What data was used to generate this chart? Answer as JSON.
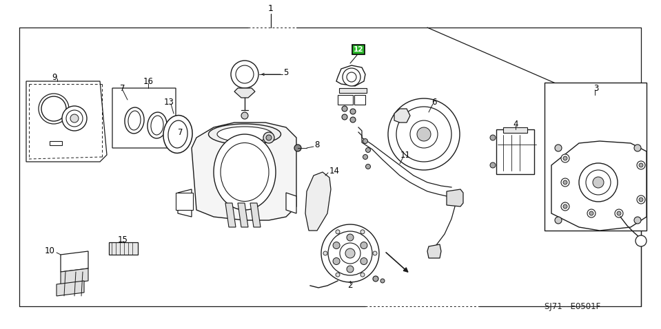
{
  "bg_color": "#ffffff",
  "line_color": "#1a1a1a",
  "highlight_color": "#2db82d",
  "fig_width": 9.59,
  "fig_height": 4.78,
  "dpi": 100,
  "code": "SJ71 - E0501F"
}
